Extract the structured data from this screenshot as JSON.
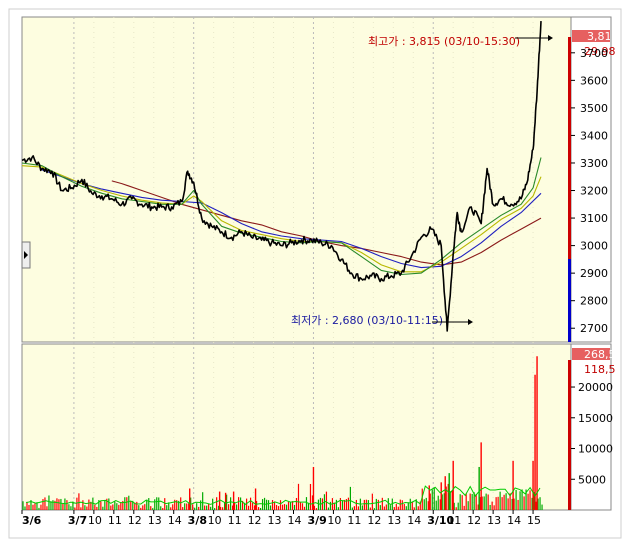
{
  "colors": {
    "background": "#fdfde0",
    "price_line": "#000000",
    "ma_short": "#2a8a2a",
    "ma_mid": "#b8b800",
    "ma_long": "#2020c0",
    "ma_very_long": "#8b1a1a",
    "vol_up": "#ff0000",
    "vol_down": "#00aa00",
    "axis_high": "#cc0000",
    "axis_low": "#0000cc",
    "highlight_bg": "#e66060"
  },
  "price_panel": {
    "axis_highlight_top": "3,81",
    "axis_highlight_pct": "29.98",
    "high_annotation": "최고가 : 3,815 (03/10-15:30)",
    "low_annotation": "최저가 : 2,680 (03/10-11:15)"
  },
  "volume_panel": {
    "axis_highlight_top": "268,5",
    "axis_highlight_sub": "118,5"
  },
  "chart_data": [
    {
      "type": "line",
      "y_tick_labels": [
        "3700",
        "3600",
        "3500",
        "3400",
        "3300",
        "3200",
        "3100",
        "3000",
        "2900",
        "2800",
        "2700"
      ],
      "y_ticks": [
        3700,
        3600,
        3500,
        3400,
        3300,
        3200,
        3100,
        3000,
        2900,
        2800,
        2700
      ],
      "ylim": [
        2650,
        3830
      ],
      "x_tick_labels": [
        {
          "label": "3/6",
          "bold": true
        },
        {
          "label": "3/7",
          "bold": true
        },
        {
          "label": "10"
        },
        {
          "label": "11"
        },
        {
          "label": "12"
        },
        {
          "label": "13"
        },
        {
          "label": "14"
        },
        {
          "label": "3/8",
          "bold": true
        },
        {
          "label": "10"
        },
        {
          "label": "11"
        },
        {
          "label": "12"
        },
        {
          "label": "13"
        },
        {
          "label": "14"
        },
        {
          "label": "3/9",
          "bold": true
        },
        {
          "label": "10"
        },
        {
          "label": "11"
        },
        {
          "label": "12"
        },
        {
          "label": "13"
        },
        {
          "label": "14"
        },
        {
          "label": "3/10",
          "bold": true
        },
        {
          "label": "11"
        },
        {
          "label": "12"
        },
        {
          "label": "13"
        },
        {
          "label": "14"
        },
        {
          "label": "15"
        }
      ],
      "x_tick_positions": [
        0,
        2.6,
        3.6,
        4.6,
        5.6,
        6.6,
        7.6,
        8.6,
        9.6,
        10.6,
        11.6,
        12.6,
        13.6,
        14.6,
        15.6,
        16.6,
        17.6,
        18.6,
        19.6,
        20.6,
        21.6,
        22.6,
        23.6,
        24.6,
        25.6
      ],
      "xlim": [
        0,
        27.2
      ],
      "grid": "vertical dashed at day boundaries",
      "series": [
        {
          "key": "price",
          "x": [
            0,
            0.5,
            1,
            1.5,
            2,
            2.5,
            3,
            3.5,
            4,
            4.5,
            5,
            5.5,
            6,
            6.5,
            7,
            7.5,
            8,
            8.3,
            8.6,
            9,
            9.5,
            10,
            10.5,
            11,
            11.5,
            12,
            12.5,
            13,
            13.5,
            14,
            14.5,
            15,
            15.5,
            16,
            16.5,
            17,
            17.5,
            18,
            18.5,
            19,
            19.5,
            20,
            20.5,
            21,
            21.3,
            21.6,
            21.8,
            22,
            22.5,
            23,
            23.3,
            23.6,
            24,
            24.5,
            25,
            25.3,
            25.6,
            25.8,
            26
          ],
          "y": [
            3310,
            3320,
            3280,
            3270,
            3200,
            3210,
            3240,
            3190,
            3180,
            3170,
            3150,
            3170,
            3150,
            3140,
            3140,
            3140,
            3160,
            3270,
            3230,
            3100,
            3070,
            3050,
            3030,
            3050,
            3030,
            3020,
            3010,
            3000,
            3010,
            3020,
            3020,
            3010,
            3000,
            2950,
            2900,
            2880,
            2890,
            2880,
            2890,
            2900,
            2960,
            3030,
            3060,
            3000,
            2690,
            2970,
            3120,
            3050,
            3140,
            3080,
            3280,
            3150,
            3170,
            3150,
            3170,
            3230,
            3350,
            3560,
            3815
          ]
        },
        {
          "key": "ma_short",
          "x": [
            0,
            1,
            2,
            3,
            4,
            5,
            6,
            7,
            8,
            8.6,
            9,
            10,
            11,
            12,
            13,
            14,
            15,
            16,
            17,
            18,
            19,
            20,
            21,
            22,
            23,
            24,
            25,
            25.6,
            26
          ],
          "y": [
            3300,
            3290,
            3250,
            3215,
            3190,
            3170,
            3160,
            3150,
            3150,
            3200,
            3150,
            3070,
            3045,
            3030,
            3015,
            3010,
            3015,
            3010,
            2960,
            2910,
            2895,
            2900,
            2950,
            3010,
            3060,
            3110,
            3150,
            3210,
            3320
          ]
        },
        {
          "key": "ma_mid",
          "x": [
            0,
            1,
            2,
            3,
            4,
            5,
            6,
            7,
            8,
            8.6,
            9,
            10,
            11,
            12,
            13,
            14,
            15,
            16,
            17,
            18,
            19,
            20,
            21,
            22,
            23,
            24,
            25,
            25.6,
            26
          ],
          "y": [
            3290,
            3285,
            3255,
            3225,
            3200,
            3180,
            3165,
            3155,
            3150,
            3180,
            3160,
            3090,
            3055,
            3040,
            3025,
            3015,
            3015,
            3010,
            2975,
            2930,
            2905,
            2905,
            2940,
            2990,
            3040,
            3095,
            3135,
            3180,
            3250
          ]
        },
        {
          "key": "ma_long",
          "x": [
            1,
            2,
            3,
            4,
            5,
            6,
            7,
            8,
            9,
            10,
            11,
            12,
            13,
            14,
            15,
            16,
            17,
            18,
            19,
            20,
            21,
            22,
            23,
            24,
            25,
            26
          ],
          "y": [
            3275,
            3250,
            3225,
            3205,
            3190,
            3175,
            3165,
            3160,
            3155,
            3120,
            3080,
            3050,
            3035,
            3025,
            3020,
            3015,
            2990,
            2960,
            2935,
            2920,
            2925,
            2960,
            3010,
            3070,
            3120,
            3190
          ]
        },
        {
          "key": "ma_very_long",
          "x": [
            4.5,
            5,
            6,
            7,
            8,
            9,
            10,
            11,
            12,
            13,
            14,
            15,
            16,
            17,
            18,
            19,
            20,
            21,
            22,
            23,
            24,
            25,
            26
          ],
          "y": [
            3235,
            3225,
            3200,
            3175,
            3150,
            3130,
            3110,
            3090,
            3075,
            3050,
            3035,
            3015,
            3000,
            2990,
            2975,
            2960,
            2940,
            2930,
            2940,
            2975,
            3020,
            3060,
            3100
          ]
        }
      ]
    },
    {
      "type": "bar",
      "y_tick_labels": [
        "20000",
        "15000",
        "10000",
        "5000"
      ],
      "y_ticks": [
        20000,
        15000,
        10000,
        5000
      ],
      "ylim": [
        0,
        27000
      ],
      "xlim": [
        0,
        27.2
      ],
      "spikes": [
        {
          "x": 25.8,
          "v": 25000,
          "c": "up"
        },
        {
          "x": 25.7,
          "v": 22000,
          "c": "up"
        },
        {
          "x": 25.6,
          "v": 8000,
          "c": "up"
        },
        {
          "x": 23.0,
          "v": 11000,
          "c": "up"
        },
        {
          "x": 22.9,
          "v": 7000,
          "c": "down"
        },
        {
          "x": 24.6,
          "v": 8000,
          "c": "up"
        },
        {
          "x": 21.6,
          "v": 8000,
          "c": "up"
        },
        {
          "x": 21.4,
          "v": 6000,
          "c": "down"
        },
        {
          "x": 21.2,
          "v": 5500,
          "c": "up"
        },
        {
          "x": 21.0,
          "v": 4500,
          "c": "up"
        },
        {
          "x": 20.4,
          "v": 4000,
          "c": "up"
        },
        {
          "x": 14.6,
          "v": 7000,
          "c": "up"
        },
        {
          "x": 11.7,
          "v": 3500,
          "c": "up"
        },
        {
          "x": 10.6,
          "v": 3000,
          "c": "up"
        },
        {
          "x": 10.2,
          "v": 2800,
          "c": "up"
        },
        {
          "x": 8.4,
          "v": 3500,
          "c": "up"
        },
        {
          "x": 9.9,
          "v": 3000,
          "c": "up"
        }
      ]
    }
  ]
}
